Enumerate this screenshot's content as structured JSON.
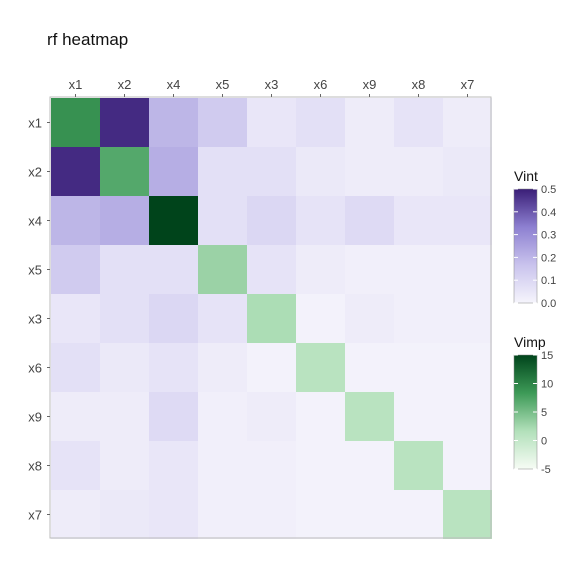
{
  "chart_data": {
    "type": "heatmap",
    "title": "rf heatmap",
    "x_categories": [
      "x1",
      "x2",
      "x4",
      "x5",
      "x3",
      "x6",
      "x9",
      "x8",
      "x7"
    ],
    "y_categories": [
      "x1",
      "x2",
      "x4",
      "x5",
      "x3",
      "x6",
      "x9",
      "x8",
      "x7"
    ],
    "vimp": [
      9,
      7,
      15,
      3,
      2,
      1,
      1,
      1,
      1
    ],
    "vint": [
      [
        null,
        0.48,
        0.2,
        0.14,
        0.05,
        0.07,
        0.03,
        0.06,
        0.03
      ],
      [
        0.48,
        null,
        0.22,
        0.07,
        0.07,
        0.04,
        0.03,
        0.03,
        0.04
      ],
      [
        0.2,
        0.22,
        null,
        0.07,
        0.1,
        0.06,
        0.09,
        0.05,
        0.05
      ],
      [
        0.14,
        0.07,
        0.07,
        null,
        0.06,
        0.03,
        0.02,
        0.02,
        0.02
      ],
      [
        0.05,
        0.07,
        0.1,
        0.06,
        null,
        0.01,
        0.03,
        0.02,
        0.02
      ],
      [
        0.07,
        0.04,
        0.06,
        0.03,
        0.01,
        null,
        0.01,
        0.01,
        0.01
      ],
      [
        0.03,
        0.03,
        0.09,
        0.02,
        0.03,
        0.01,
        null,
        0.01,
        0.01
      ],
      [
        0.06,
        0.03,
        0.05,
        0.02,
        0.02,
        0.01,
        0.01,
        null,
        0.01
      ],
      [
        0.03,
        0.04,
        0.05,
        0.02,
        0.02,
        0.01,
        0.01,
        0.01,
        null
      ]
    ],
    "legends": [
      {
        "title": "Vint",
        "ticks": [
          "0.5",
          "0.4",
          "0.3",
          "0.2",
          "0.1",
          "0.0"
        ],
        "tick_values": [
          0.5,
          0.4,
          0.3,
          0.2,
          0.1,
          0.0
        ],
        "range": [
          0,
          0.5
        ],
        "color_low": "#f6f5fc",
        "color_high": "#3a1e77"
      },
      {
        "title": "Vimp",
        "ticks": [
          "15",
          "10",
          "5",
          "0",
          "-5"
        ],
        "tick_values": [
          15,
          10,
          5,
          0,
          -5
        ],
        "range": [
          -5,
          15
        ],
        "color_low": "#f7fcf5",
        "color_high": "#00441b"
      }
    ],
    "grid": false,
    "legend_position": "right"
  }
}
